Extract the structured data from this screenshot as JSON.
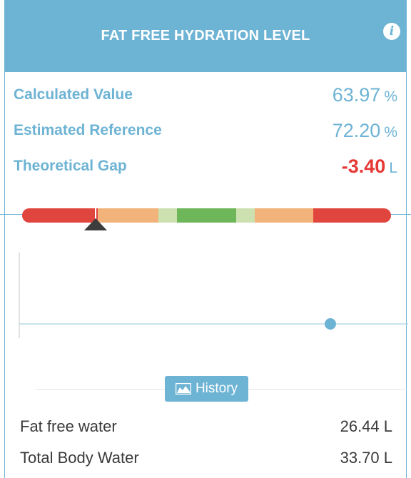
{
  "header": {
    "title": "FAT FREE HYDRATION LEVEL",
    "info_icon": "info-icon"
  },
  "metrics": [
    {
      "label": "Calculated Value",
      "value": "63.97",
      "unit": "%"
    },
    {
      "label": "Estimated Reference",
      "value": "72.20",
      "unit": "%"
    },
    {
      "label": "Theoretical Gap",
      "value": "-3.40",
      "unit": "L"
    }
  ],
  "colors": {
    "accent": "#6db3d4",
    "negative": "#e53935",
    "scale": [
      "#e0453e",
      "#f2b37a",
      "#cde0b0",
      "#6db65a",
      "#cde0b0",
      "#f2b37a",
      "#e0453e"
    ]
  },
  "scale": {
    "position": 0.2
  },
  "history": {
    "label": "History",
    "icon": "area-chart-icon",
    "current_point": 0.8
  },
  "footer": [
    {
      "label": "Fat free water",
      "value": "26.44 L"
    },
    {
      "label": "Total Body Water",
      "value": "33.70 L"
    }
  ]
}
